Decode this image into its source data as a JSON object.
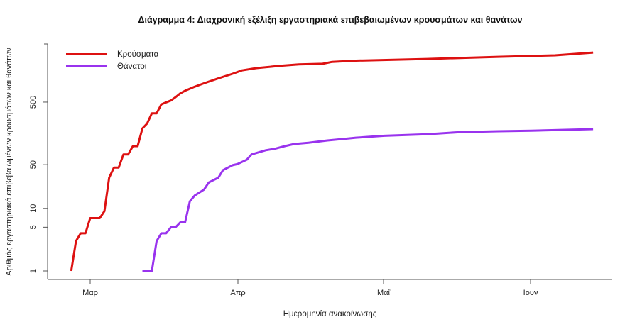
{
  "chart_data": {
    "type": "line",
    "title": "Διάγραμμα 4: Διαχρονική εξέλιξη εργαστηριακά επιβεβαιωμένων κρουσμάτων και θανάτων",
    "xlabel": "Ημερομηνία ανακοίνωσης",
    "ylabel": "Αριθμός εργαστηριακά επιβεβαιωμένων κρουσμάτων και θανάτων",
    "y_scale": "log",
    "ylim": [
      1,
      3200
    ],
    "y_ticks": [
      1,
      5,
      10,
      50,
      500
    ],
    "x_ticks": [
      "Μαρ",
      "Απρ",
      "Μαΐ",
      "Ιουν"
    ],
    "x_unit": "days since 1 March",
    "grid": false,
    "legend_position": "top-left",
    "series": [
      {
        "name": "Κρούσματα",
        "color": "#dd1111",
        "x": [
          -4,
          -3,
          -2,
          -1,
          0,
          1,
          2,
          3,
          4,
          5,
          6,
          7,
          8,
          9,
          10,
          11,
          12,
          13,
          14,
          15,
          16,
          17,
          18,
          19,
          20,
          22,
          24,
          27,
          30,
          32,
          35,
          40,
          44,
          49,
          51,
          56,
          71,
          86,
          98,
          106
        ],
        "values": [
          1,
          3,
          4,
          4,
          7,
          7,
          7,
          9,
          31,
          45,
          45,
          73,
          73,
          99,
          99,
          190,
          228,
          331,
          331,
          460,
          495,
          530,
          600,
          690,
          760,
          880,
          1000,
          1200,
          1420,
          1610,
          1750,
          1900,
          2000,
          2050,
          2200,
          2300,
          2450,
          2650,
          2800,
          3100
        ]
      },
      {
        "name": "Θάνατοι",
        "color": "#9933ee",
        "x": [
          11,
          13,
          14,
          15,
          16,
          17,
          18,
          19,
          20,
          21,
          22,
          24,
          25,
          27,
          28,
          30,
          31,
          33,
          34,
          37,
          39,
          41,
          43,
          46,
          50,
          53,
          56,
          62,
          71,
          78,
          86,
          93,
          106
        ],
        "values": [
          1,
          1,
          3,
          4,
          4,
          5,
          5,
          6,
          6,
          13,
          16,
          20,
          26,
          31,
          41,
          49,
          51,
          60,
          73,
          85,
          90,
          99,
          107,
          112,
          122,
          128,
          135,
          145,
          153,
          166,
          171,
          175,
          185
        ]
      }
    ]
  },
  "legend": {
    "items": [
      {
        "label": "Κρούσματα",
        "color": "#dd1111"
      },
      {
        "label": "Θάνατοι",
        "color": "#9933ee"
      }
    ]
  }
}
